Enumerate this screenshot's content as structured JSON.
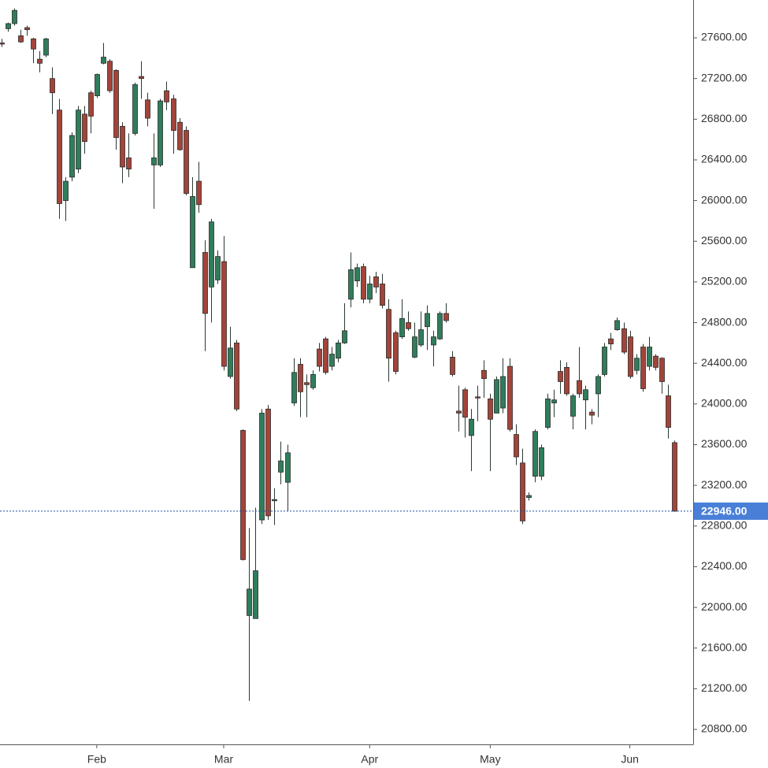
{
  "chart_data": {
    "type": "candlestick",
    "categories": [
      null,
      null,
      null,
      null,
      null,
      null,
      null,
      null,
      null,
      null,
      null,
      null,
      null,
      null,
      null,
      "Feb",
      null,
      null,
      null,
      null,
      null,
      null,
      null,
      null,
      null,
      null,
      null,
      null,
      null,
      null,
      null,
      null,
      null,
      null,
      null,
      "Mar",
      null,
      null,
      null,
      null,
      null,
      null,
      null,
      null,
      null,
      null,
      null,
      null,
      null,
      null,
      null,
      null,
      null,
      null,
      null,
      null,
      null,
      null,
      "Apr",
      null,
      null,
      null,
      null,
      null,
      null,
      null,
      null,
      null,
      null,
      null,
      null,
      null,
      null,
      null,
      null,
      null,
      null,
      "May",
      null,
      null,
      null,
      null,
      null,
      null,
      null,
      null,
      null,
      null,
      null,
      null,
      null,
      null,
      null,
      null,
      null,
      null,
      null,
      null,
      null,
      "Jun",
      null,
      null,
      null,
      null,
      null,
      null,
      null
    ],
    "open": [
      27550,
      27690,
      27740,
      27620,
      27700,
      27590,
      27390,
      27430,
      27200,
      26890,
      26000,
      26230,
      26310,
      26850,
      27060,
      27030,
      27350,
      27370,
      27280,
      26730,
      26420,
      26660,
      27220,
      26990,
      26350,
      26350,
      27080,
      27000,
      26770,
      26690,
      25340,
      26190,
      25490,
      25150,
      25220,
      25400,
      24270,
      24600,
      23740,
      21920,
      21890,
      22860,
      23950,
      23050,
      23330,
      23230,
      24010,
      24390,
      24210,
      24160,
      24540,
      24640,
      24370,
      24450,
      24600,
      25030,
      25210,
      25350,
      25030,
      25250,
      25180,
      24930,
      24700,
      24660,
      24800,
      24460,
      24580,
      24760,
      24580,
      24640,
      24890,
      24460,
      23930,
      24140,
      23690,
      24070,
      24330,
      24050,
      23910,
      23960,
      24370,
      23700,
      23420,
      23080,
      23290,
      23290,
      23770,
      24010,
      24320,
      24360,
      23880,
      24230,
      24040,
      23920,
      24100,
      24290,
      24640,
      24730,
      24740,
      24660,
      24330,
      24560,
      24370,
      24470,
      24450,
      24080,
      23620
    ],
    "high": [
      27590,
      27750,
      27890,
      27680,
      27720,
      27600,
      27470,
      27600,
      27310,
      27000,
      26230,
      26670,
      26930,
      26930,
      27080,
      27250,
      27550,
      27390,
      27290,
      26770,
      26660,
      27160,
      27370,
      27060,
      26660,
      27000,
      27170,
      27040,
      26810,
      26730,
      26230,
      26380,
      25610,
      25820,
      25510,
      25650,
      24760,
      24630,
      23750,
      22780,
      22980,
      23950,
      23990,
      23170,
      23630,
      23600,
      24450,
      24450,
      24290,
      24330,
      24600,
      24660,
      24560,
      24630,
      24990,
      25490,
      25380,
      25380,
      25260,
      25300,
      25280,
      25030,
      24720,
      25030,
      24910,
      24800,
      24910,
      24970,
      24720,
      24910,
      24990,
      24520,
      24180,
      24160,
      23950,
      24180,
      24430,
      24100,
      24270,
      24450,
      24450,
      23800,
      23560,
      23130,
      23750,
      23600,
      24100,
      24140,
      24430,
      24410,
      24100,
      24560,
      24180,
      23950,
      24290,
      24600,
      24700,
      24850,
      24800,
      24720,
      24490,
      24590,
      24660,
      24490,
      24460,
      24190,
      23640
    ],
    "low": [
      27510,
      27660,
      27720,
      27550,
      27620,
      27350,
      27260,
      27410,
      26850,
      25820,
      25800,
      26190,
      26270,
      26460,
      26660,
      27010,
      27340,
      27060,
      26500,
      26170,
      26230,
      26640,
      27000,
      26730,
      25920,
      26330,
      26890,
      26460,
      26490,
      26050,
      25340,
      25880,
      24520,
      24800,
      25180,
      24330,
      24250,
      23930,
      22460,
      21080,
      21890,
      22820,
      22860,
      22810,
      23210,
      22950,
      23980,
      23870,
      23870,
      24140,
      24320,
      24290,
      24330,
      24410,
      24590,
      24950,
      25150,
      24990,
      24990,
      25090,
      24940,
      24220,
      24290,
      24640,
      24720,
      24450,
      24560,
      24530,
      24370,
      24630,
      24800,
      24270,
      23730,
      23670,
      23340,
      23830,
      24060,
      23340,
      23910,
      23910,
      23730,
      23400,
      22820,
      23050,
      23230,
      23250,
      23750,
      23870,
      24100,
      24080,
      23750,
      24060,
      23750,
      23800,
      23870,
      24270,
      24530,
      24720,
      24490,
      24250,
      24290,
      24120,
      24330,
      24330,
      24100,
      23660,
      22940
    ],
    "close": [
      27540,
      27740,
      27870,
      27560,
      27680,
      27490,
      27350,
      27590,
      27060,
      25970,
      26190,
      26640,
      26890,
      26580,
      26830,
      27240,
      27410,
      27080,
      26620,
      26330,
      26310,
      27140,
      27200,
      26810,
      26420,
      26980,
      26970,
      26690,
      26500,
      26070,
      26040,
      25960,
      24890,
      25790,
      25450,
      24370,
      24550,
      23950,
      22470,
      22180,
      22360,
      23910,
      22900,
      23060,
      23440,
      23520,
      24310,
      24120,
      24190,
      24290,
      24370,
      24310,
      24490,
      24600,
      24720,
      25320,
      25340,
      25030,
      25180,
      25150,
      24970,
      24450,
      24320,
      24840,
      24740,
      24660,
      24730,
      24890,
      24660,
      24890,
      24820,
      24290,
      23910,
      23870,
      23850,
      24060,
      24250,
      23850,
      24240,
      24270,
      23750,
      23480,
      22850,
      23100,
      23730,
      23570,
      24050,
      24040,
      24220,
      24100,
      24080,
      24100,
      24140,
      23890,
      24270,
      24560,
      24590,
      24820,
      24510,
      24270,
      24450,
      24150,
      24560,
      24360,
      24220,
      23770,
      22946
    ],
    "up_color": "#2f7d5b",
    "down_color": "#a3443a",
    "ylim": [
      20653,
      27972
    ],
    "yticks": [
      {
        "value": 20800,
        "label": "20800.00"
      },
      {
        "value": 21200,
        "label": "21200.00"
      },
      {
        "value": 21600,
        "label": "21600.00"
      },
      {
        "value": 22000,
        "label": "22000.00"
      },
      {
        "value": 22400,
        "label": "22400.00"
      },
      {
        "value": 22800,
        "label": "22800.00"
      },
      {
        "value": 23200,
        "label": "23200.00"
      },
      {
        "value": 23600,
        "label": "23600.00"
      },
      {
        "value": 24000,
        "label": "24000.00"
      },
      {
        "value": 24400,
        "label": "24400.00"
      },
      {
        "value": 24800,
        "label": "24800.00"
      },
      {
        "value": 25200,
        "label": "25200.00"
      },
      {
        "value": 25600,
        "label": "25600.00"
      },
      {
        "value": 26000,
        "label": "26000.00"
      },
      {
        "value": 26400,
        "label": "26400.00"
      },
      {
        "value": 26800,
        "label": "26800.00"
      },
      {
        "value": 27200,
        "label": "27200.00"
      },
      {
        "value": 27600,
        "label": "27600.00"
      }
    ],
    "last_price": {
      "value": 22946,
      "label": "22946.00"
    },
    "last_price_color": "#4a7fd8"
  }
}
